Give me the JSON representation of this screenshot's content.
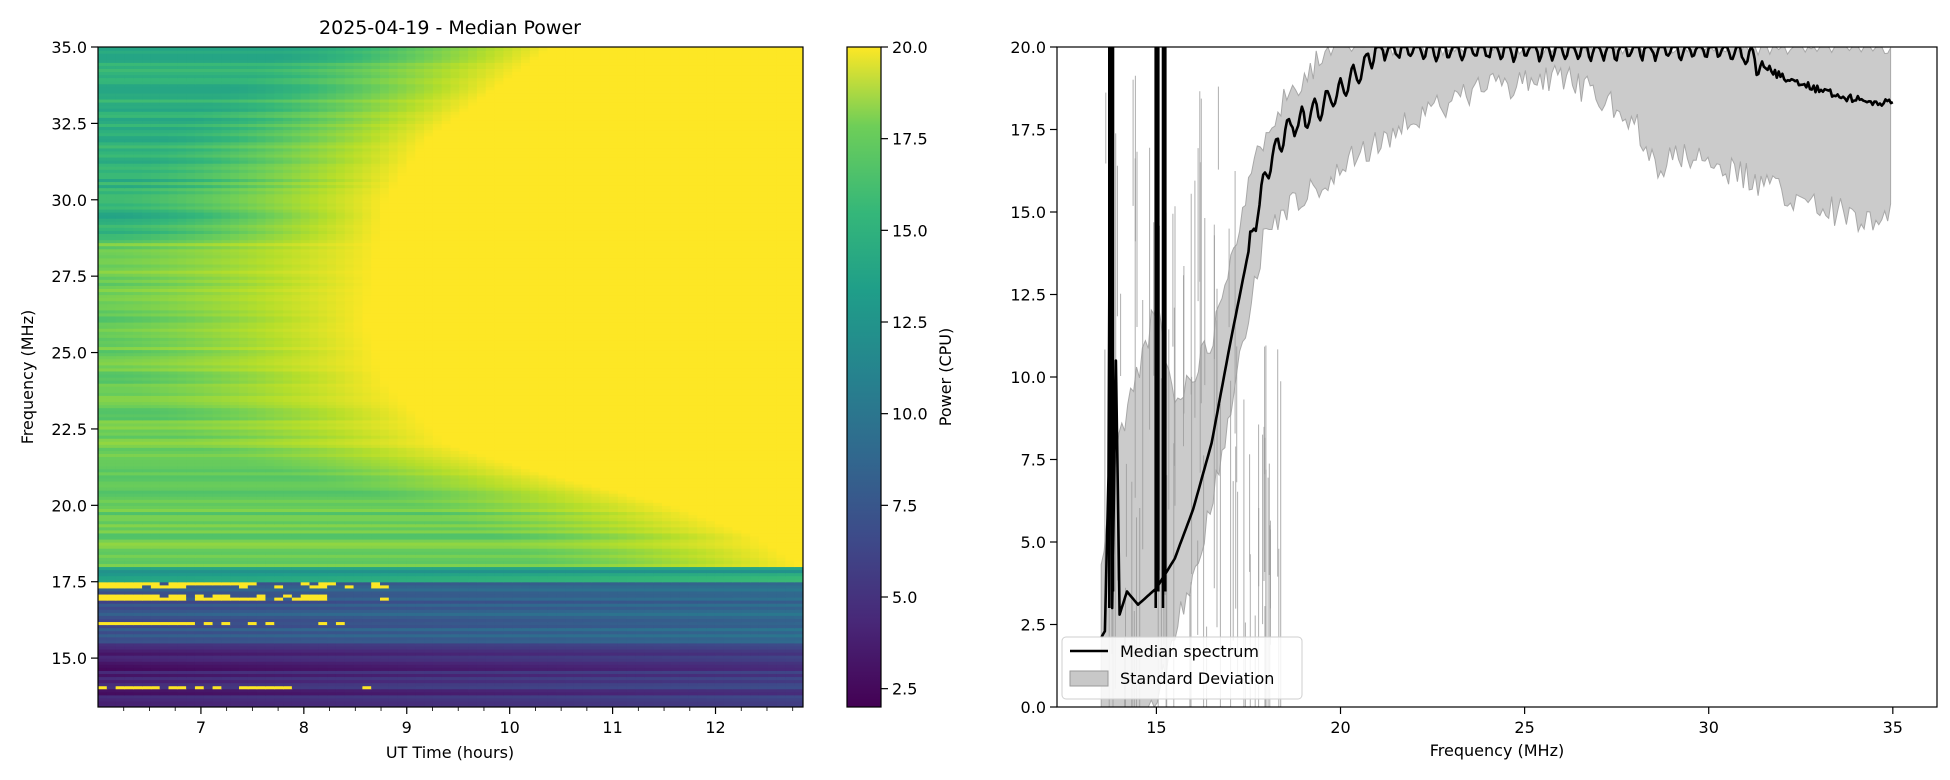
{
  "chart_data": [
    {
      "type": "heatmap",
      "title": "2025-04-19 - Median Power",
      "xlabel": "UT Time (hours)",
      "ylabel": "Frequency (MHz)",
      "xlim": [
        6.0,
        12.85
      ],
      "ylim": [
        13.4,
        35.0
      ],
      "xticks": [
        7,
        8,
        9,
        10,
        11,
        12
      ],
      "yticks": [
        15.0,
        17.5,
        20.0,
        22.5,
        25.0,
        27.5,
        30.0,
        32.5,
        35.0
      ],
      "colormap": "viridis",
      "grid": false,
      "colorbar": {
        "label": "Power (CPU)",
        "range": [
          2.0,
          20.0
        ],
        "ticks": [
          2.5,
          5.0,
          7.5,
          10.0,
          12.5,
          15.0,
          17.5,
          20.0
        ]
      },
      "saturation_boundary": {
        "description_time_at_which_power_reaches_max_per_frequency": true,
        "freq": [
          18.0,
          19.0,
          20.0,
          21.0,
          22.0,
          24.0,
          26.0,
          28.0,
          30.0,
          32.0,
          34.0,
          35.0
        ],
        "time": [
          12.85,
          12.4,
          11.6,
          10.4,
          9.4,
          8.8,
          8.6,
          8.7,
          8.8,
          9.2,
          10.0,
          10.4
        ]
      },
      "bands": [
        {
          "freq_range": [
            13.4,
            15.5
          ],
          "power": 3.5
        },
        {
          "freq_range": [
            15.5,
            17.5
          ],
          "power": 6.5
        },
        {
          "freq_range": [
            17.5,
            18.0
          ],
          "power": 12.0
        },
        {
          "freq_range": [
            18.0,
            28.7
          ],
          "power": 16.0
        },
        {
          "freq_range": [
            28.7,
            35.0
          ],
          "power": 13.5
        }
      ]
    },
    {
      "type": "line",
      "title": "",
      "xlabel": "Frequency (MHz)",
      "ylabel": "",
      "xlim": [
        12.3,
        36.2
      ],
      "ylim": [
        0.0,
        20.0
      ],
      "xticks": [
        15,
        20,
        25,
        30,
        35
      ],
      "yticks": [
        0.0,
        2.5,
        5.0,
        7.5,
        10.0,
        12.5,
        15.0,
        17.5,
        20.0
      ],
      "grid": false,
      "legend_position": "lower-left",
      "series": [
        {
          "name": "Median spectrum",
          "color": "#000000",
          "x": [
            13.5,
            13.6,
            13.7,
            13.75,
            13.8,
            13.9,
            14.0,
            14.2,
            14.5,
            15.0,
            15.5,
            16.0,
            16.5,
            17.0,
            17.5,
            18.0,
            18.5,
            19.0,
            19.5,
            20.0,
            20.5,
            21.0,
            21.5,
            22.0,
            23.0,
            24.0,
            25.0,
            26.0,
            27.0,
            28.0,
            29.0,
            30.0,
            30.5,
            31.0,
            31.5,
            32.0,
            33.0,
            34.0,
            34.5,
            35.0
          ],
          "y": [
            2.1,
            2.3,
            7.0,
            20.0,
            3.0,
            10.5,
            2.8,
            3.5,
            3.1,
            3.6,
            4.5,
            6.0,
            8.0,
            11.0,
            13.8,
            16.3,
            17.5,
            17.8,
            18.2,
            18.7,
            19.2,
            20.0,
            20.0,
            20.0,
            20.0,
            20.0,
            20.0,
            20.0,
            20.0,
            20.0,
            20.0,
            20.0,
            20.0,
            19.8,
            19.4,
            19.1,
            18.7,
            18.4,
            18.3,
            18.4
          ]
        },
        {
          "name": "Standard Deviation",
          "color": "#c8c8c8",
          "type": "band",
          "x": [
            13.5,
            14.0,
            14.5,
            15.0,
            15.5,
            16.0,
            16.5,
            17.0,
            17.5,
            18.0,
            19.0,
            20.0,
            21.0,
            22.0,
            24.0,
            26.0,
            27.0,
            28.0,
            28.7,
            29.0,
            30.0,
            31.0,
            32.0,
            33.0,
            34.0,
            35.0
          ],
          "lower": [
            0.0,
            0.0,
            0.0,
            0.5,
            2.8,
            4.5,
            6.5,
            9.5,
            12.5,
            15.0,
            16.0,
            16.8,
            17.5,
            18.3,
            19.2,
            19.5,
            19.0,
            18.2,
            16.5,
            17.2,
            17.0,
            16.5,
            16.0,
            15.6,
            15.3,
            15.4
          ],
          "upper": [
            4.0,
            8.0,
            10.0,
            12.0,
            9.0,
            10.0,
            11.0,
            13.5,
            15.5,
            17.5,
            19.0,
            20.0,
            20.0,
            20.0,
            20.0,
            20.0,
            20.0,
            20.0,
            20.0,
            20.0,
            20.0,
            20.0,
            20.0,
            20.0,
            20.0,
            20.0
          ]
        }
      ]
    }
  ]
}
